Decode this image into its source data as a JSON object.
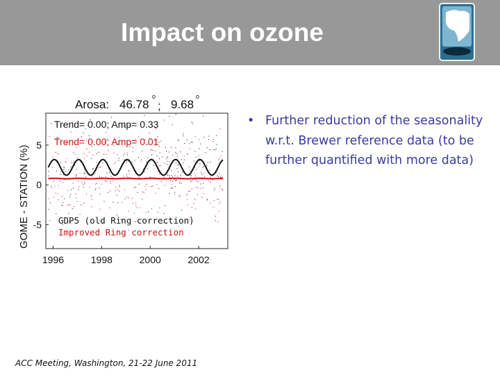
{
  "slide": {
    "title": "Impact on ozone",
    "logo_icon": "globe-africa-icon",
    "footer": "ACC Meeting, Washington, 21-22 June 2011",
    "bullets": [
      {
        "icon": "bullet-dot-icon",
        "text": "Further reduction of the seasonality w.r.t. Brewer reference data (to be further quantified with more data)"
      }
    ]
  },
  "chart_data": {
    "type": "scatter",
    "title_parts": [
      "Arosa:",
      "46.78",
      ";",
      "9.68"
    ],
    "degree_symbol": "o",
    "ylabel": "GOME - STATION (%)",
    "xlabel": "",
    "xlim": [
      1995.7,
      2003.2
    ],
    "ylim": [
      -8,
      9
    ],
    "x_ticks": [
      {
        "value": 1996,
        "label": "1996"
      },
      {
        "value": 1998,
        "label": "1998"
      },
      {
        "value": 2000,
        "label": "2000"
      },
      {
        "value": 2002,
        "label": "2002"
      }
    ],
    "y_ticks": [
      {
        "value": 5,
        "label": "5"
      },
      {
        "value": 0,
        "label": "0"
      },
      {
        "value": -5,
        "label": "-5"
      }
    ],
    "annotations": [
      "Trend= 0.00; Amp= 0.33",
      "Trend= 0.00; Amp= 0.01"
    ],
    "legend_placement": "bottom-left",
    "series": [
      {
        "name": "GDP5 (old Ring correction)",
        "color": "#111111",
        "trend": 0.0,
        "amp": 0.33,
        "fit_offset": 2.2,
        "x_start": 1995.8,
        "x_end": 2003.0
      },
      {
        "name": "Improved Ring correction",
        "color": "#cc1111",
        "trend": 0.0,
        "amp": 0.01,
        "fit_offset": 0.8,
        "x_start": 1995.8,
        "x_end": 2003.0
      }
    ]
  }
}
